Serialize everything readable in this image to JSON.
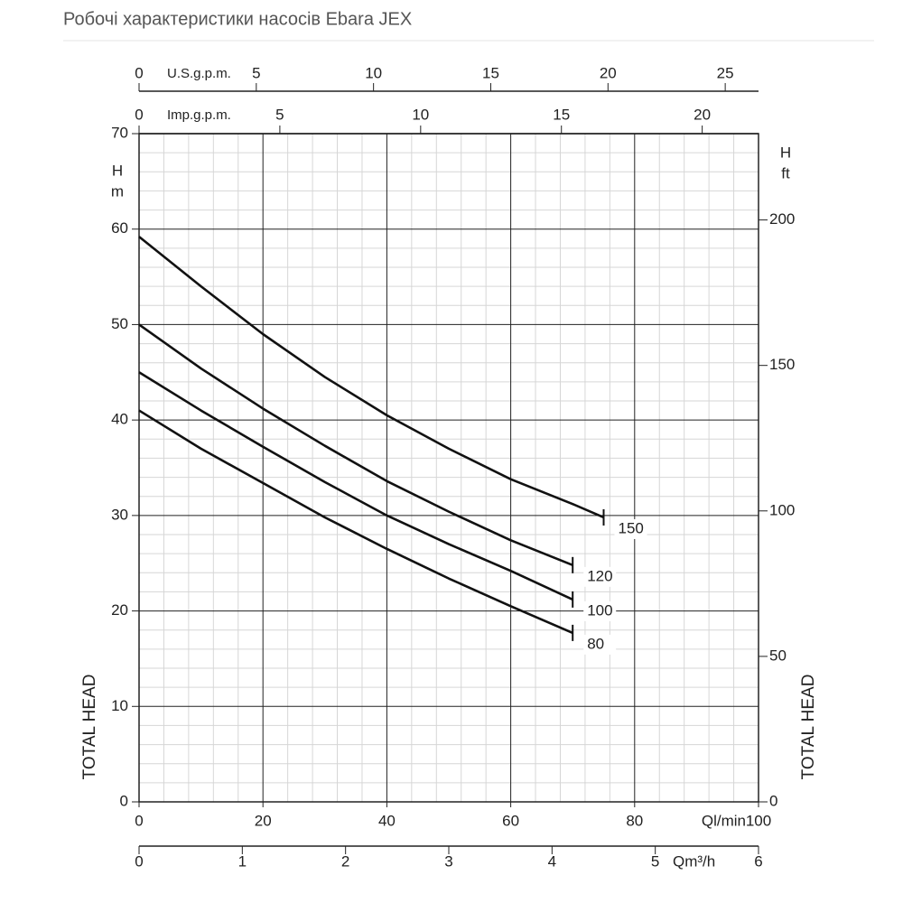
{
  "page_title": "Робочі характеристики насосів Ebara JEX",
  "chart_data": {
    "type": "line",
    "x": [
      0,
      10,
      20,
      30,
      40,
      50,
      60,
      70,
      75
    ],
    "series": [
      {
        "name": "150",
        "color": "#111111",
        "values": [
          59.2,
          54,
          49,
          44.5,
          40.5,
          37,
          33.8,
          31.2,
          29.8
        ]
      },
      {
        "name": "120",
        "color": "#111111",
        "values": [
          50,
          45.4,
          41.2,
          37.3,
          33.6,
          30.4,
          27.4,
          24.8,
          null
        ]
      },
      {
        "name": "100",
        "color": "#111111",
        "values": [
          45,
          41,
          37.2,
          33.5,
          30,
          27,
          24.2,
          21.2,
          null
        ]
      },
      {
        "name": "80",
        "color": "#111111",
        "values": [
          41,
          37,
          33.4,
          29.8,
          26.5,
          23.4,
          20.5,
          17.7,
          null
        ]
      }
    ],
    "xlabel": "Ql/min",
    "xlim": [
      0,
      100
    ],
    "xticks": [
      0,
      20,
      40,
      60,
      80,
      100
    ],
    "ylabel": "TOTAL HEAD",
    "ylabel_unit": [
      "H",
      "m"
    ],
    "ylim": [
      0,
      70
    ],
    "yticks": [
      0,
      10,
      20,
      30,
      40,
      50,
      60,
      70
    ],
    "y2label": "TOTAL HEAD",
    "y2label_unit": [
      "H",
      "ft"
    ],
    "y2lim": [
      0,
      229.66
    ],
    "y2ticks": [
      0,
      50,
      100,
      150,
      200
    ],
    "x_us_label": "U.S.g.p.m.",
    "x_us_lim": [
      0,
      26.42
    ],
    "x_us_ticks": [
      0,
      5,
      10,
      15,
      20,
      25
    ],
    "x_imp_label": "Imp.g.p.m.",
    "x_imp_lim": [
      0,
      22
    ],
    "x_imp_ticks": [
      0,
      5,
      10,
      15,
      20
    ],
    "x_m3_label": "Qm³/h",
    "x_m3_lim": [
      0,
      6
    ],
    "x_m3_ticks": [
      0,
      1,
      2,
      3,
      4,
      5,
      6
    ],
    "grid": true
  }
}
